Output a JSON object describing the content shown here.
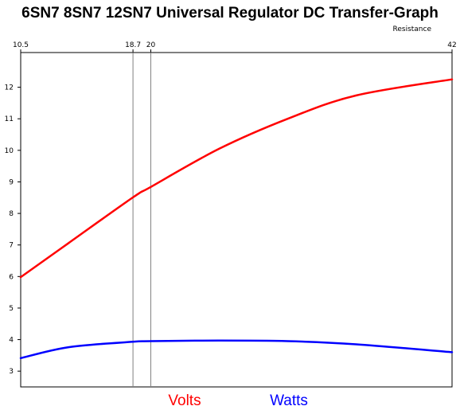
{
  "chart_data": {
    "type": "line",
    "title": "6SN7 8SN7 12SN7 Universal Regulator DC Transfer-Graph",
    "x_axis_label": "Resistance",
    "xlim": [
      10.5,
      42
    ],
    "ylim": [
      2.5,
      13.1
    ],
    "x_ticks": [
      10.5,
      18.7,
      20,
      42
    ],
    "x_tick_labels": [
      "10.5",
      "18.7",
      "20",
      "42"
    ],
    "y_ticks": [
      3,
      4,
      5,
      6,
      7,
      8,
      9,
      10,
      11,
      12
    ],
    "y_tick_labels": [
      "3",
      "4",
      "5",
      "6",
      "7",
      "8",
      "9",
      "10",
      "11",
      "12"
    ],
    "vertical_markers": [
      18.7,
      20
    ],
    "grid": false,
    "legend_position": "bottom",
    "series": [
      {
        "name": "Volts",
        "color": "#ff0000",
        "x": [
          10.5,
          14,
          18.7,
          20,
          25,
          30,
          35,
          42
        ],
        "y": [
          5.98,
          7.06,
          8.51,
          8.84,
          10.05,
          11.0,
          11.74,
          12.25
        ]
      },
      {
        "name": "Watts",
        "color": "#0000ff",
        "x": [
          10.5,
          14,
          18.7,
          20,
          25,
          30,
          35,
          42
        ],
        "y": [
          3.41,
          3.76,
          3.93,
          3.95,
          3.97,
          3.95,
          3.85,
          3.6
        ]
      }
    ]
  }
}
